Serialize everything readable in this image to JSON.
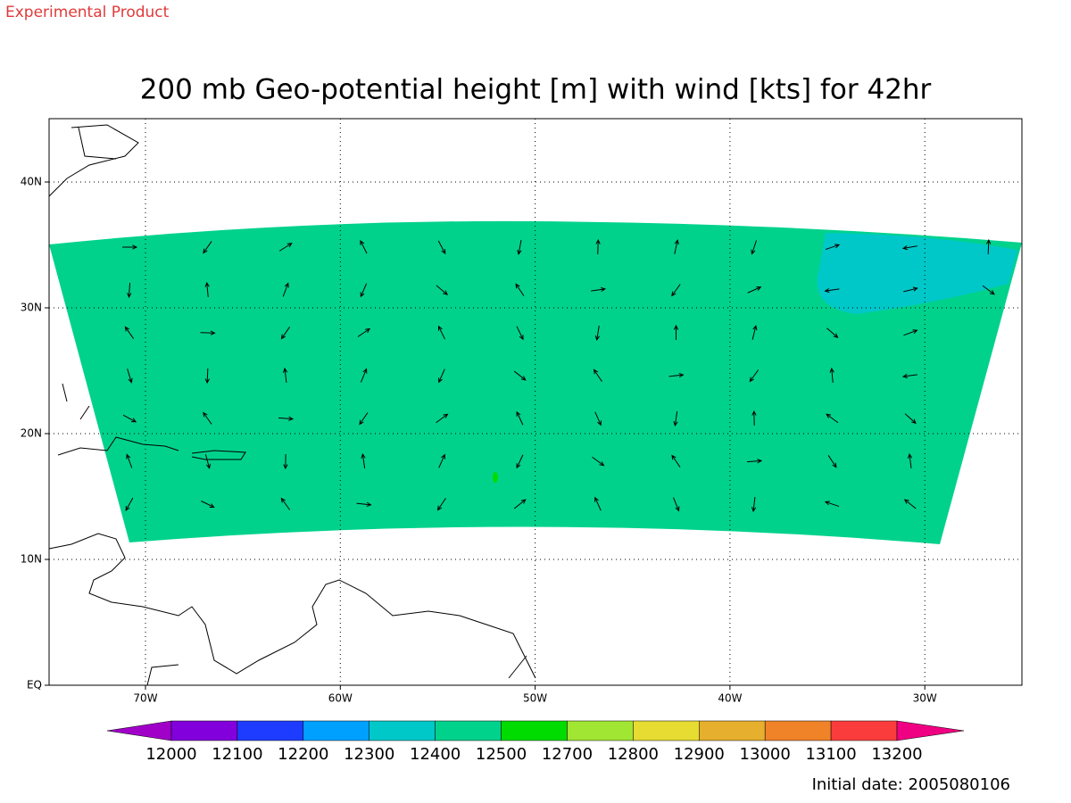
{
  "header": {
    "label": "Experimental Product"
  },
  "title": "200 mb Geo-potential height [m] with wind [kts] for 42hr",
  "map": {
    "lat_labels": [
      "EQ",
      "10N",
      "20N",
      "30N",
      "40N"
    ],
    "lon_labels": [
      "70W",
      "60W",
      "50W",
      "40W",
      "30W"
    ]
  },
  "colorbar": {
    "levels": [
      12000,
      12100,
      12200,
      12300,
      12400,
      12500,
      12700,
      12800,
      12900,
      13000,
      13100,
      13200
    ],
    "colors": [
      "#a000c8",
      "#8200dc",
      "#1e3cff",
      "#00a0ff",
      "#00c8c8",
      "#00d28c",
      "#00dc00",
      "#a0e632",
      "#e6dc32",
      "#e6af2d",
      "#f08228",
      "#fa3c3c",
      "#f00082"
    ]
  },
  "footer": {
    "initial_date": "Initial date: 2005080106"
  }
}
